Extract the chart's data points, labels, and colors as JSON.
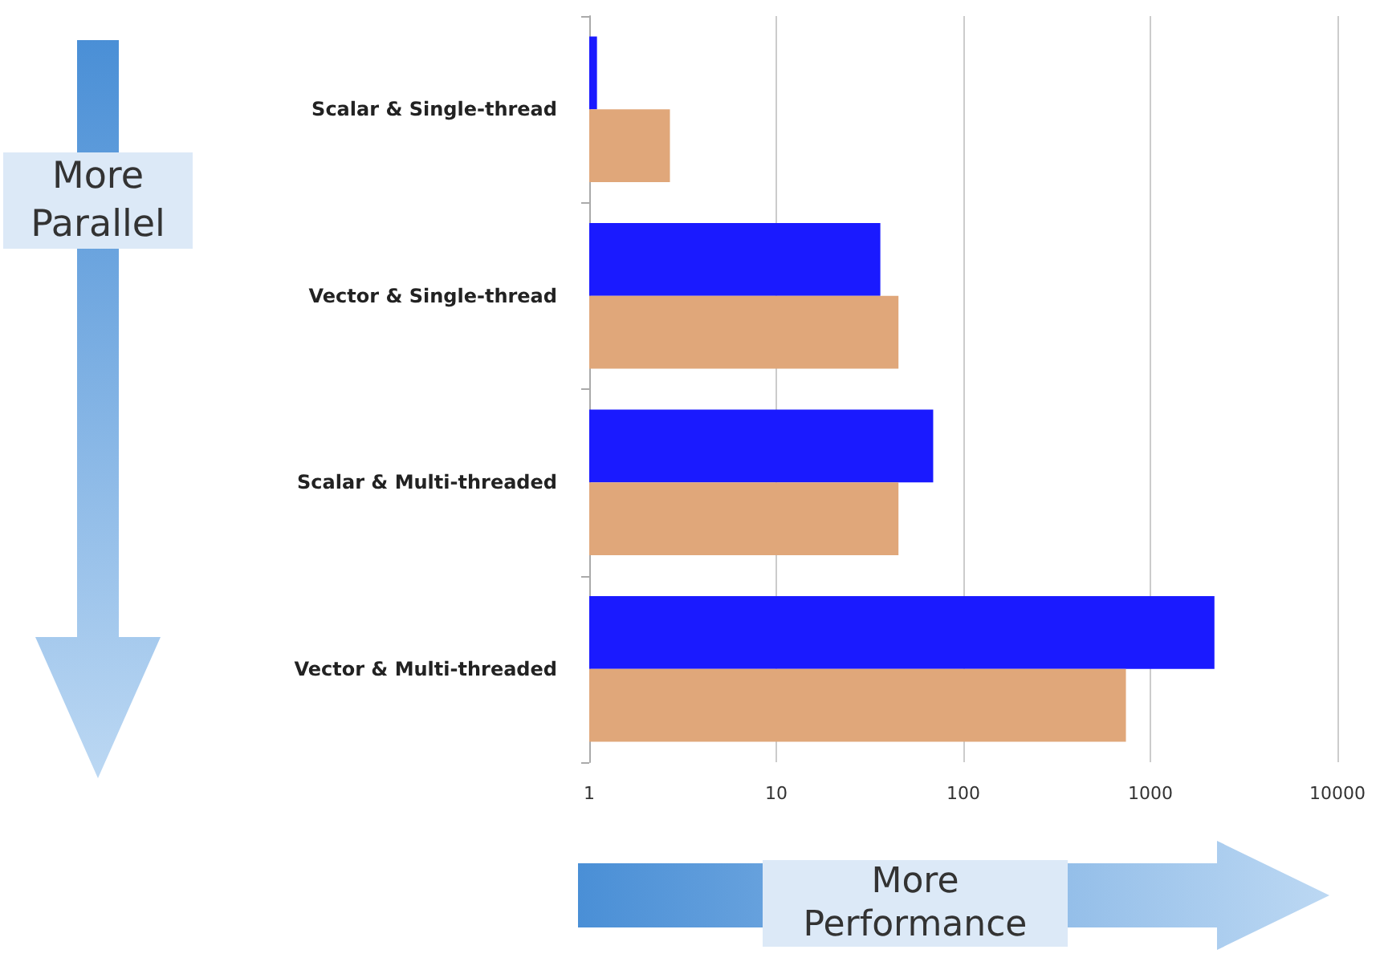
{
  "chart_data": {
    "type": "bar",
    "orientation": "horizontal",
    "log": "x",
    "categories": [
      "Scalar & Single-thread",
      "Vector & Single-thread",
      "Scalar & Multi-threaded",
      "Vector & Multi-threaded"
    ],
    "series": [
      {
        "color": "#1a1aff",
        "values": [
          1.1,
          36,
          69,
          2200
        ]
      },
      {
        "color": "#e0a77a",
        "values": [
          2.7,
          45,
          45,
          740
        ]
      }
    ],
    "xlim": [
      1,
      10000
    ],
    "xticks": [
      1,
      10,
      100,
      1000,
      10000
    ],
    "grid": "x",
    "annotations": [
      "More Parallel",
      "More Performance"
    ]
  }
}
